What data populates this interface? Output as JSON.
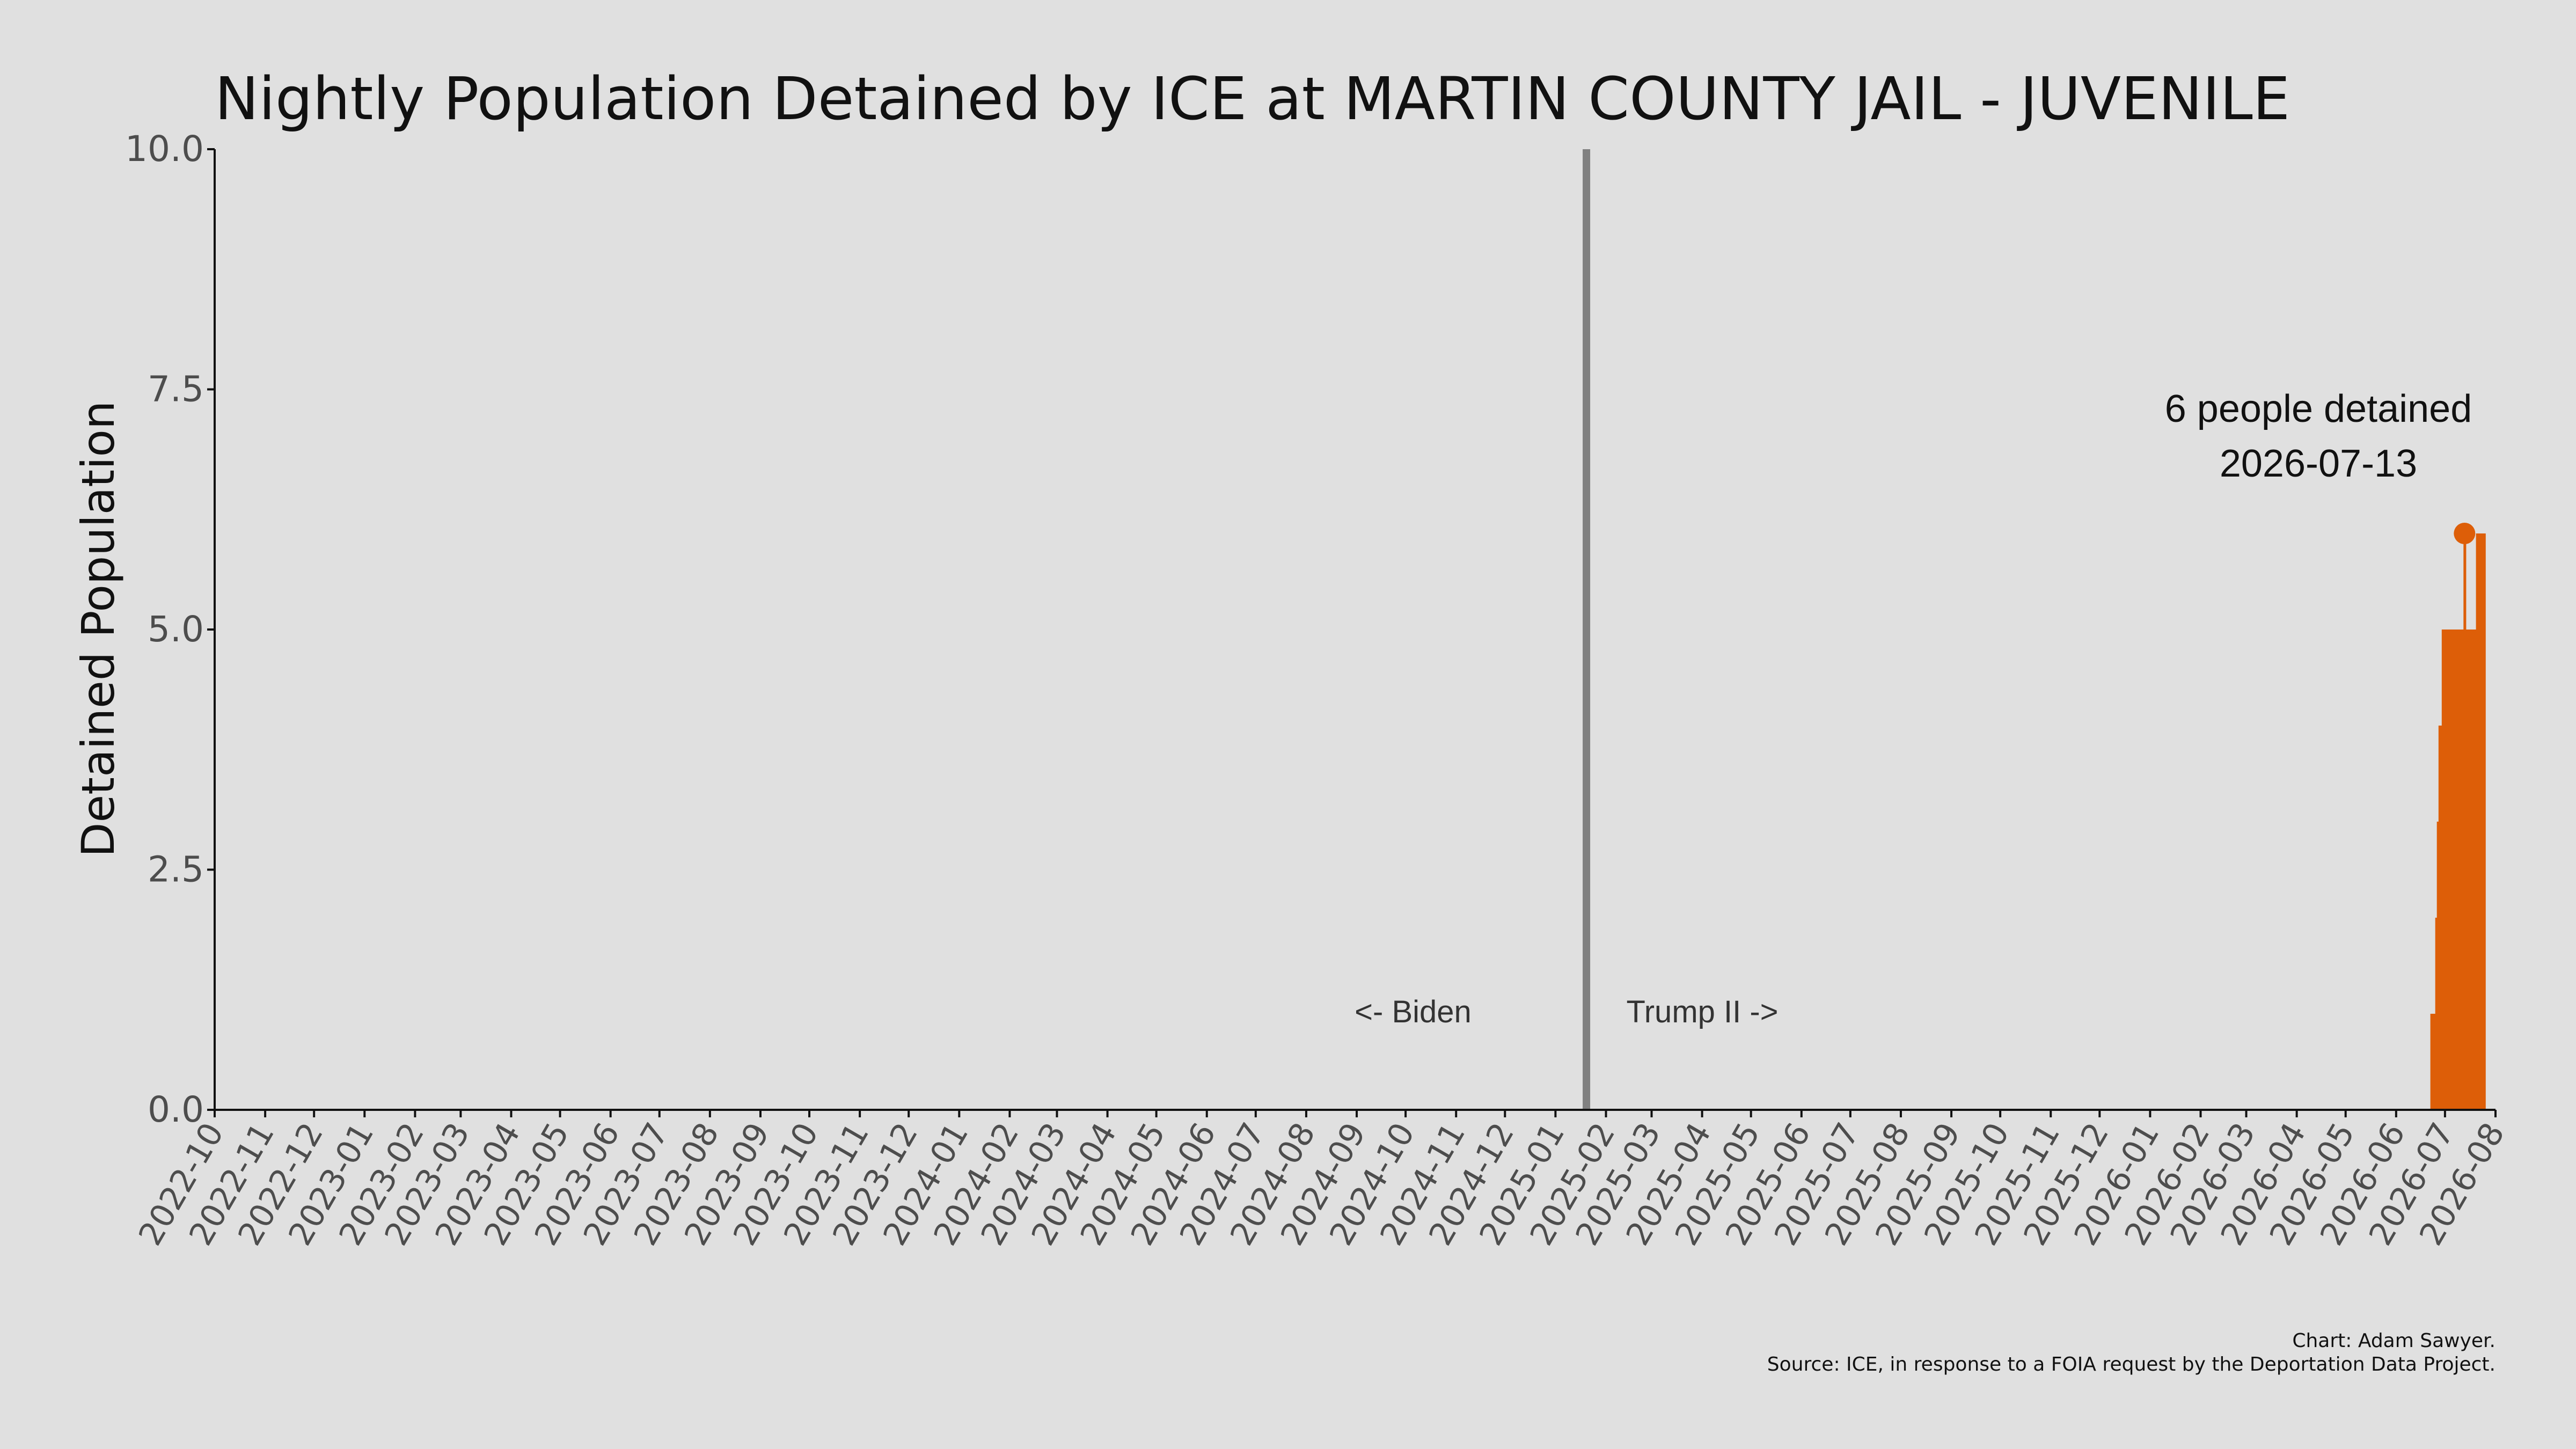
{
  "chart_data": {
    "type": "area",
    "title": "Nightly Population Detained by ICE at MARTIN COUNTY JAIL - JUVENILE",
    "ylabel": "Detained Population",
    "xlabel": "",
    "ylim": [
      0,
      10
    ],
    "xlim": [
      "2022-10-01",
      "2026-08-01"
    ],
    "yticks": [
      "0.0",
      "2.5",
      "5.0",
      "7.5",
      "10.0"
    ],
    "xticks": [
      "2022-10",
      "2022-11",
      "2022-12",
      "2023-01",
      "2023-02",
      "2023-03",
      "2023-04",
      "2023-05",
      "2023-06",
      "2023-07",
      "2023-08",
      "2023-09",
      "2023-10",
      "2023-11",
      "2023-12",
      "2024-01",
      "2024-02",
      "2024-03",
      "2024-04",
      "2024-05",
      "2024-06",
      "2024-07",
      "2024-08",
      "2024-09",
      "2024-10",
      "2024-11",
      "2024-12",
      "2025-01",
      "2025-02",
      "2025-03",
      "2025-04",
      "2025-05",
      "2025-06",
      "2025-07",
      "2025-08",
      "2025-09",
      "2025-10",
      "2025-11",
      "2025-12",
      "2026-01",
      "2026-02",
      "2026-03",
      "2026-04",
      "2026-05",
      "2026-06",
      "2026-07",
      "2026-08"
    ],
    "series": [
      {
        "color": "#dd5e08",
        "points": [
          {
            "date": "2026-06-21",
            "value": 0
          },
          {
            "date": "2026-06-22",
            "value": 1
          },
          {
            "date": "2026-06-25",
            "value": 2
          },
          {
            "date": "2026-06-26",
            "value": 3
          },
          {
            "date": "2026-06-27",
            "value": 4
          },
          {
            "date": "2026-06-29",
            "value": 5
          },
          {
            "date": "2026-07-06",
            "value": 5
          },
          {
            "date": "2026-07-13",
            "value": 6
          },
          {
            "date": "2026-07-14",
            "value": 5
          },
          {
            "date": "2026-07-20",
            "value": 6
          },
          {
            "date": "2026-07-25",
            "value": 6
          },
          {
            "date": "2026-07-26",
            "value": 0
          }
        ]
      }
    ],
    "divider": {
      "date": "2025-01-20",
      "color": "#808080"
    },
    "era_labels": {
      "left": "<- Biden",
      "right": "Trump II ->"
    },
    "peak": {
      "date": "2026-07-13",
      "value": 6,
      "label_line1": "6 people detained",
      "label_line2": "2026-07-13"
    },
    "grid": false,
    "background": "#e0e0e0"
  },
  "caption": {
    "line1": "Chart: Adam Sawyer.",
    "line2": "Source: ICE, in response to a FOIA request by the Deportation Data Project."
  }
}
